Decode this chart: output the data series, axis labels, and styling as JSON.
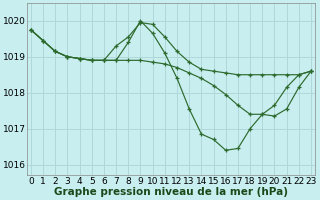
{
  "title": "Graphe pression niveau de la mer (hPa)",
  "background_color": "#c8eef0",
  "grid_color": "#b0d8d8",
  "line_color": "#2d6a2d",
  "marker_color": "#2d6a2d",
  "ylim": [
    1015.7,
    1020.5
  ],
  "yticks": [
    1016,
    1017,
    1018,
    1019,
    1020
  ],
  "xlim": [
    -0.3,
    23.3
  ],
  "xticks": [
    0,
    1,
    2,
    3,
    4,
    5,
    6,
    7,
    8,
    9,
    10,
    11,
    12,
    13,
    14,
    15,
    16,
    17,
    18,
    19,
    20,
    21,
    22,
    23
  ],
  "series": [
    [
      1019.75,
      1019.45,
      1019.15,
      1019.0,
      1018.95,
      1018.9,
      1018.9,
      1019.3,
      1019.55,
      1019.95,
      1019.9,
      1019.55,
      1019.15,
      1018.85,
      1018.65,
      1018.6,
      1018.55,
      1018.5,
      1018.5,
      1018.5,
      1018.5,
      1018.5,
      1018.5,
      1018.6
    ],
    [
      1019.75,
      1019.45,
      1019.15,
      1019.0,
      1018.95,
      1018.9,
      1018.9,
      1018.9,
      1019.4,
      1020.0,
      1019.65,
      1019.1,
      1018.4,
      1017.55,
      1016.85,
      1016.7,
      1016.4,
      1016.45,
      1017.0,
      1017.4,
      1017.65,
      1018.15,
      1018.5,
      1018.6
    ],
    [
      1019.75,
      1019.45,
      1019.15,
      1019.0,
      1018.95,
      1018.9,
      1018.9,
      1018.9,
      1018.9,
      1018.9,
      1018.85,
      1018.8,
      1018.7,
      1018.55,
      1018.4,
      1018.2,
      1017.95,
      1017.65,
      1017.4,
      1017.4,
      1017.35,
      1017.55,
      1018.15,
      1018.6
    ]
  ],
  "tick_fontsize": 6.5,
  "title_fontsize": 7.5,
  "figsize": [
    3.2,
    2.0
  ],
  "dpi": 100
}
